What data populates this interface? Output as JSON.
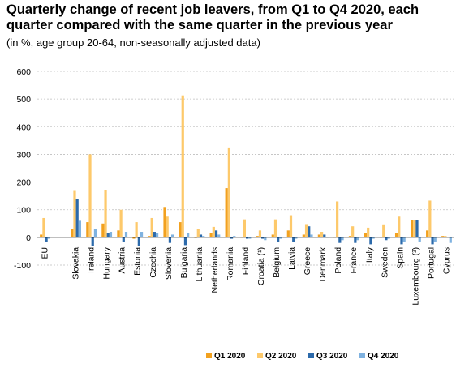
{
  "header": {
    "title": "Quarterly change of recent job leavers, from Q1 to Q4 2020, each quarter compared with the same quarter in the previous year",
    "subtitle": "(in %, age group 20-64, non-seasonally adjusted data)"
  },
  "colors": {
    "Q1 2020": "#f2a11f",
    "Q2 2020": "#fdc96b",
    "Q3 2020": "#2c6aab",
    "Q4 2020": "#7fb2e0",
    "grid": "#bfbfbf",
    "axis": "#000000"
  },
  "chart_data": {
    "type": "bar",
    "title": "Quarterly change of recent job leavers, from Q1 to Q4 2020, each quarter compared with the same quarter in the previous year",
    "subtitle": "(in %, age group 20-64, non-seasonally adjusted data)",
    "xlabel": "",
    "ylabel": "",
    "ylim": [
      -100,
      600
    ],
    "yticks": [
      -100,
      0,
      100,
      200,
      300,
      400,
      500,
      600
    ],
    "grid": true,
    "legend": "bottom",
    "categories": [
      "EU",
      "",
      "Slovakia",
      "Ireland",
      "Hungary",
      "Austria",
      "Estonia",
      "Czechia",
      "Slovenia",
      "Bulgaria",
      "Lithuania",
      "Netherlands",
      "Romania",
      "Finland",
      "Croatia (¹)",
      "Belgium",
      "Latvia",
      "Greece",
      "Denmark",
      "Poland",
      "France",
      "Italy",
      "Sweden",
      "Spain",
      "Luxembourg (²)",
      "Portugal",
      "Cyprus"
    ],
    "series": [
      {
        "name": "Q1 2020",
        "values": [
          10,
          null,
          30,
          55,
          50,
          25,
          -5,
          5,
          110,
          55,
          -2,
          15,
          178,
          0,
          5,
          10,
          25,
          10,
          10,
          0,
          5,
          15,
          0,
          15,
          62,
          25,
          5
        ]
      },
      {
        "name": "Q2 2020",
        "values": [
          70,
          null,
          168,
          300,
          170,
          100,
          55,
          70,
          75,
          513,
          30,
          38,
          325,
          65,
          25,
          65,
          80,
          48,
          20,
          130,
          40,
          35,
          47,
          75,
          63,
          133,
          5
        ]
      },
      {
        "name": "Q3 2020",
        "values": [
          -15,
          null,
          138,
          -32,
          15,
          -15,
          -30,
          20,
          -20,
          -28,
          10,
          25,
          -5,
          -5,
          -5,
          -15,
          -15,
          40,
          10,
          -20,
          -20,
          -25,
          -10,
          -25,
          62,
          -25,
          2
        ]
      },
      {
        "name": "Q4 2020",
        "values": [
          -5,
          null,
          60,
          30,
          20,
          20,
          20,
          15,
          10,
          15,
          5,
          10,
          5,
          -5,
          -10,
          -5,
          -5,
          10,
          0,
          -10,
          -10,
          -5,
          -5,
          -15,
          -15,
          -15,
          -20
        ]
      }
    ]
  }
}
